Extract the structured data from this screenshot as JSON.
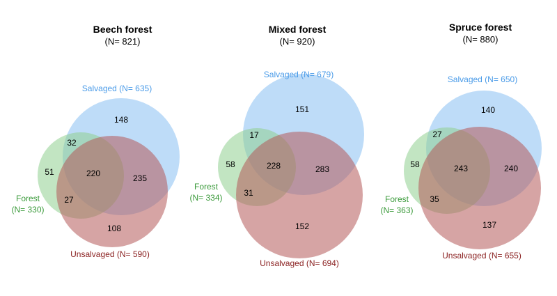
{
  "colors": {
    "forest": "#8fcf8f",
    "salvaged": "#88bff3",
    "unsalvaged": "#b55a5a",
    "forest_text": "#3a9a3a",
    "salvaged_text": "#4a9be8",
    "unsalvaged_text": "#8b2222"
  },
  "diagrams": [
    {
      "title": "Beech forest",
      "subtitle": "(N= 821)",
      "sets": {
        "salvaged": "Salvaged (N= 635)",
        "forest_line1": "Forest",
        "forest_line2": "(N= 330)",
        "unsalvaged": "Unsalvaged (N= 590)"
      },
      "regions": {
        "salvaged_only": "148",
        "forest_salvaged": "32",
        "forest_only": "51",
        "all_three": "220",
        "salvaged_unsalvaged": "235",
        "forest_unsalvaged": "27",
        "unsalvaged_only": "108"
      }
    },
    {
      "title": "Mixed forest",
      "subtitle": "(N= 920)",
      "sets": {
        "salvaged": "Salvaged (N= 679)",
        "forest_line1": "Forest",
        "forest_line2": "(N= 334)",
        "unsalvaged": "Unsalvaged (N= 694)"
      },
      "regions": {
        "salvaged_only": "151",
        "forest_salvaged": "17",
        "forest_only": "58",
        "all_three": "228",
        "salvaged_unsalvaged": "283",
        "forest_unsalvaged": "31",
        "unsalvaged_only": "152"
      }
    },
    {
      "title": "Spruce forest",
      "subtitle": "(N= 880)",
      "sets": {
        "salvaged": "Salvaged (N= 650)",
        "forest_line1": "Forest",
        "forest_line2": "(N= 363)",
        "unsalvaged": "Unsalvaged (N= 655)"
      },
      "regions": {
        "salvaged_only": "140",
        "forest_salvaged": "27",
        "forest_only": "58",
        "all_three": "243",
        "salvaged_unsalvaged": "240",
        "forest_unsalvaged": "35",
        "unsalvaged_only": "137"
      }
    }
  ]
}
